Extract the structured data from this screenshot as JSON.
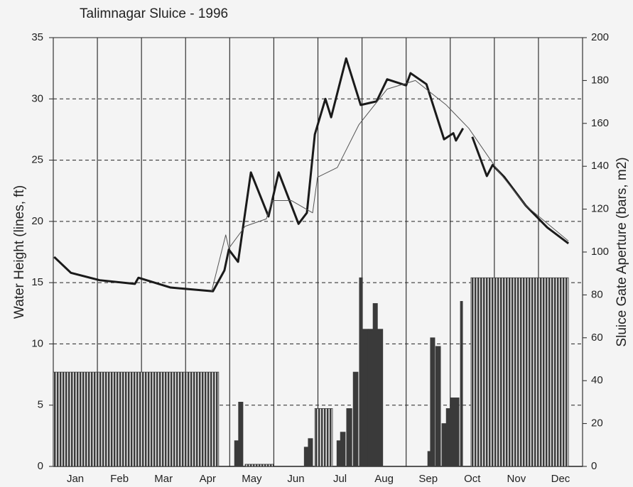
{
  "chart_data": {
    "type": "combo",
    "title": "Talimnagar Sluice - 1996",
    "ylabel": "Water Height (lines, ft)",
    "y2label": "Sluice Gate Aperture (bars, m2)",
    "xlim": [
      0,
      12
    ],
    "xticks": [
      {
        "value": 0.5,
        "label": "Jan"
      },
      {
        "value": 1.5,
        "label": "Feb"
      },
      {
        "value": 2.5,
        "label": "Mar"
      },
      {
        "value": 3.5,
        "label": "Apr"
      },
      {
        "value": 4.5,
        "label": "May"
      },
      {
        "value": 5.5,
        "label": "Jun"
      },
      {
        "value": 6.5,
        "label": "Jul"
      },
      {
        "value": 7.5,
        "label": "Aug"
      },
      {
        "value": 8.5,
        "label": "Sep"
      },
      {
        "value": 9.5,
        "label": "Oct"
      },
      {
        "value": 10.5,
        "label": "Nov"
      },
      {
        "value": 11.5,
        "label": "Dec"
      }
    ],
    "ylim": [
      0,
      35
    ],
    "yticks": [
      0,
      5,
      10,
      15,
      20,
      25,
      30,
      35
    ],
    "y2lim": [
      0,
      200
    ],
    "y2ticks": [
      0,
      20,
      40,
      60,
      80,
      100,
      120,
      140,
      160,
      180,
      200
    ],
    "grid": true,
    "bars": {
      "type": "bar",
      "axis": "y2",
      "color": "#3a3a3a",
      "x": [
        0,
        4.11,
        4.2,
        4.35,
        5.69,
        5.78,
        5.93,
        6.43,
        6.51,
        6.65,
        6.8,
        6.94,
        7.01,
        7.14,
        7.25,
        7.35,
        8.49,
        8.55,
        8.67,
        8.81,
        8.91,
        9.0,
        9.23,
        9.47
      ],
      "x_end": [
        3.75,
        4.19,
        4.3,
        4.99,
        5.78,
        5.88,
        6.33,
        6.51,
        6.62,
        6.77,
        6.91,
        7.01,
        7.14,
        7.25,
        7.35,
        7.47,
        8.55,
        8.65,
        8.78,
        8.91,
        9.0,
        9.2,
        9.28,
        11.68
      ],
      "values": [
        44,
        12,
        30,
        1,
        9,
        13,
        27,
        12,
        16,
        27,
        44,
        88,
        64,
        64,
        76,
        64,
        7,
        60,
        56,
        20,
        27,
        32,
        77,
        88
      ]
    },
    "series": [
      {
        "type": "line",
        "color": "#1a1a1a",
        "width": 3,
        "x": [
          0.02,
          0.4,
          1.05,
          1.85,
          1.93,
          2.66,
          3.62,
          3.88,
          3.98,
          4.19,
          4.48,
          4.88,
          5.11,
          5.56,
          5.75,
          5.93,
          6.17,
          6.3,
          6.64,
          6.97,
          7.33,
          7.57,
          8.0,
          8.1,
          8.46,
          8.86,
          9.07,
          9.13,
          9.29,
          9.4,
          9.5,
          9.83,
          9.96,
          10.23,
          10.71,
          11.2,
          11.68
        ],
        "values": [
          17.1,
          15.8,
          15.2,
          14.9,
          15.4,
          14.6,
          14.3,
          16.0,
          17.7,
          16.7,
          24.0,
          20.4,
          24.0,
          19.8,
          20.7,
          27.1,
          30.0,
          28.5,
          33.3,
          29.5,
          29.8,
          31.6,
          31.1,
          32.1,
          31.2,
          26.7,
          27.2,
          26.6,
          27.6,
          null,
          26.9,
          23.7,
          24.6,
          23.6,
          21.3,
          19.5,
          18.2
        ]
      },
      {
        "type": "line",
        "color": "#555555",
        "width": 1,
        "x": [
          3.59,
          3.91,
          3.98,
          4.35,
          4.83,
          4.96,
          5.4,
          5.88,
          5.99,
          6.44,
          6.93,
          7.57,
          8.21,
          8.91,
          9.42,
          10.07,
          10.71,
          11.68
        ],
        "values": [
          14.3,
          18.9,
          17.8,
          19.6,
          20.2,
          21.7,
          21.7,
          20.7,
          23.6,
          24.4,
          27.9,
          30.8,
          31.5,
          29.5,
          27.6,
          24.2,
          21.3,
          18.4
        ]
      }
    ]
  }
}
